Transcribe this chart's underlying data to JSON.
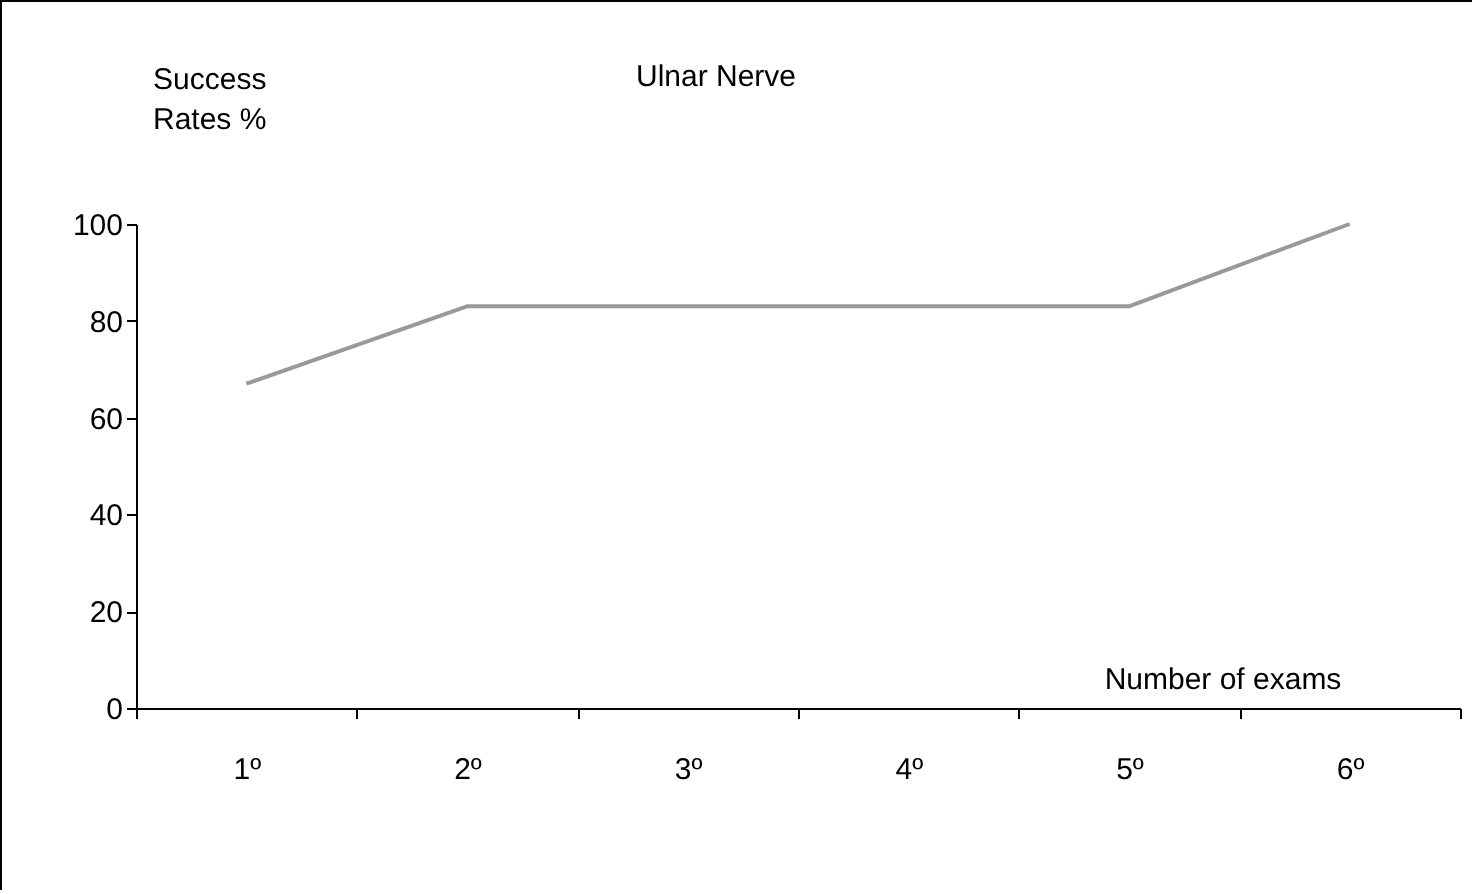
{
  "chart_data": {
    "type": "line",
    "title": "Ulnar Nerve",
    "xlabel": "Number of exams",
    "ylabel": "Success Rates %",
    "categories": [
      "1º",
      "2º",
      "3º",
      "4º",
      "5º",
      "6º"
    ],
    "series": [
      {
        "color": "#999999",
        "values": [
          67,
          83,
          83,
          83,
          83,
          100
        ]
      }
    ],
    "ylim": [
      0,
      100
    ],
    "yticks": [
      0,
      20,
      40,
      60,
      80,
      100
    ],
    "grid": false,
    "legend": false,
    "marker": "none",
    "line_style": "solid"
  }
}
